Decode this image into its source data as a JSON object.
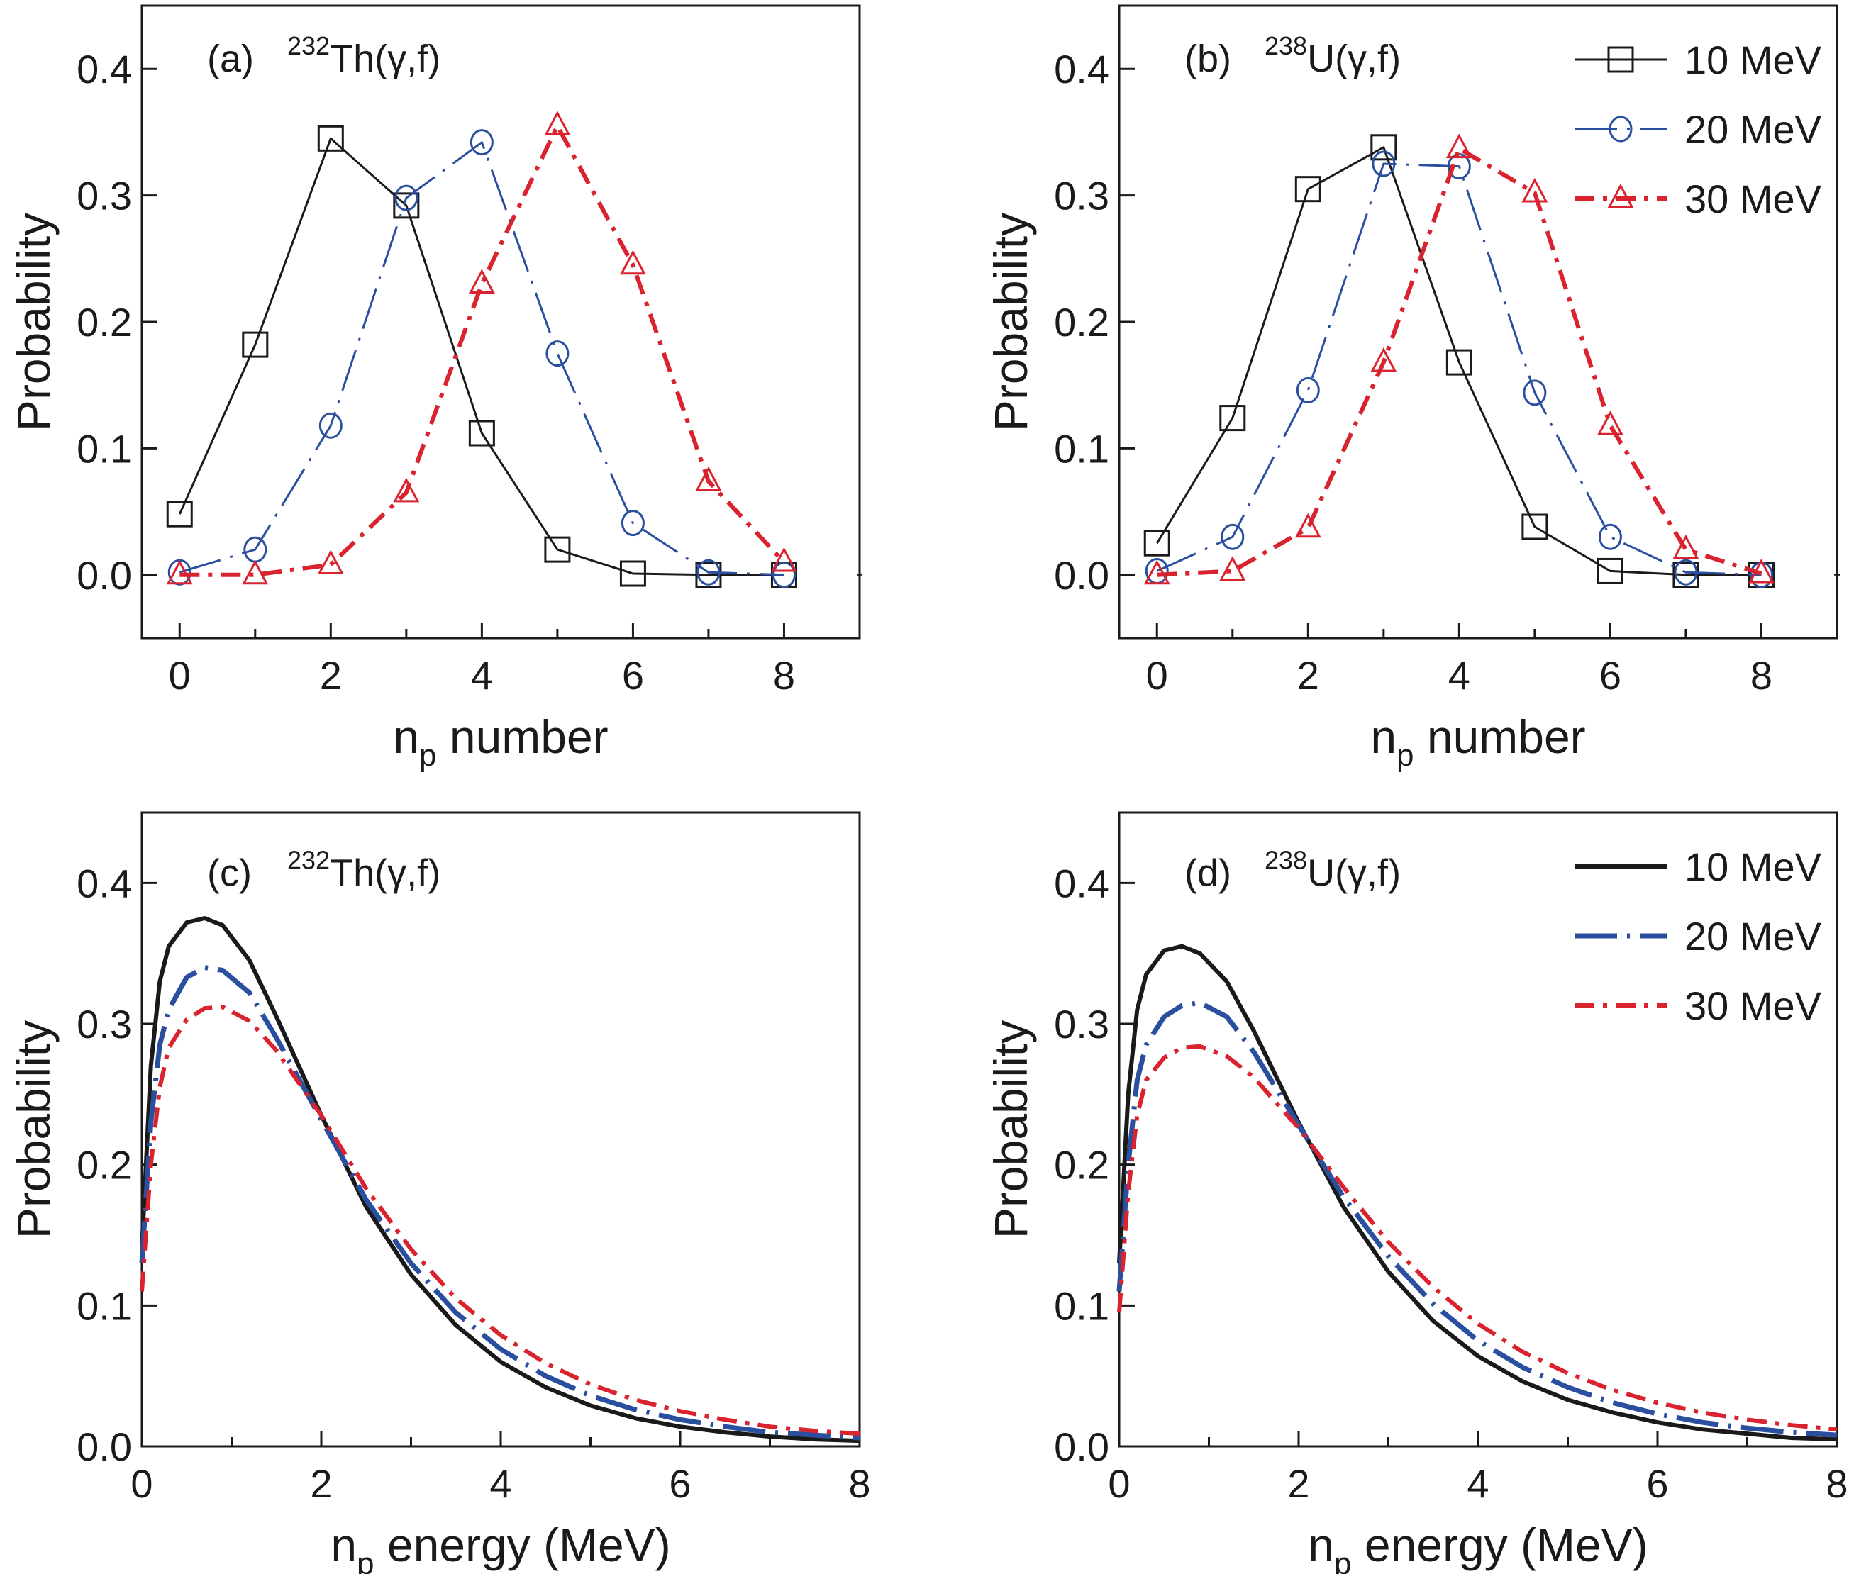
{
  "chart_data": [
    {
      "id": "a",
      "type": "line",
      "panel_label": "(a)",
      "reaction": {
        "mass_number": "232",
        "text": "Th(γ,f)"
      },
      "xlabel": {
        "main": "n",
        "sub": "p",
        "rest": " number"
      },
      "ylabel": "Probability",
      "xlim": [
        -0.5,
        9.0
      ],
      "ylim": [
        -0.05,
        0.45
      ],
      "xticks": [
        0,
        2,
        4,
        6,
        8
      ],
      "xminor": [
        1,
        3,
        5,
        7
      ],
      "yticks": [
        0.0,
        0.1,
        0.2,
        0.3,
        0.4
      ],
      "ytick_labels": [
        "0.0",
        "0.1",
        "0.2",
        "0.3",
        "0.4"
      ],
      "legend": null,
      "x": [
        0,
        1,
        2,
        3,
        4,
        5,
        6,
        7,
        8
      ],
      "series": [
        {
          "name": "10 MeV",
          "color": "#1a1a1a",
          "style": "solid",
          "marker": "square",
          "values": [
            0.048,
            0.182,
            0.345,
            0.292,
            0.112,
            0.02,
            0.001,
            0.0,
            0.0
          ]
        },
        {
          "name": "20 MeV",
          "color": "#2a4f9e",
          "style": "dashdot",
          "marker": "circle",
          "values": [
            0.002,
            0.02,
            0.118,
            0.298,
            0.342,
            0.175,
            0.041,
            0.002,
            0.0
          ]
        },
        {
          "name": "30 MeV",
          "color": "#d9232e",
          "style": "dashdotbold",
          "marker": "triangle",
          "values": [
            0.0,
            0.0,
            0.008,
            0.065,
            0.23,
            0.355,
            0.245,
            0.074,
            0.01
          ]
        }
      ]
    },
    {
      "id": "b",
      "type": "line",
      "panel_label": "(b)",
      "reaction": {
        "mass_number": "238",
        "text": "U(γ,f)"
      },
      "xlabel": {
        "main": "n",
        "sub": "p",
        "rest": " number"
      },
      "ylabel": "Probability",
      "xlim": [
        -0.5,
        9.0
      ],
      "ylim": [
        -0.05,
        0.45
      ],
      "xticks": [
        0,
        2,
        4,
        6,
        8
      ],
      "xminor": [
        1,
        3,
        5,
        7
      ],
      "yticks": [
        0.0,
        0.1,
        0.2,
        0.3,
        0.4
      ],
      "ytick_labels": [
        "0.0",
        "0.1",
        "0.2",
        "0.3",
        "0.4"
      ],
      "legend": "top-right",
      "x": [
        0,
        1,
        2,
        3,
        4,
        5,
        6,
        7,
        8
      ],
      "series": [
        {
          "name": "10 MeV",
          "color": "#1a1a1a",
          "style": "solid",
          "marker": "square",
          "values": [
            0.025,
            0.124,
            0.305,
            0.338,
            0.168,
            0.038,
            0.003,
            0.0,
            0.0
          ]
        },
        {
          "name": "20 MeV",
          "color": "#2a4f9e",
          "style": "dashdot",
          "marker": "circle",
          "values": [
            0.003,
            0.03,
            0.146,
            0.325,
            0.323,
            0.144,
            0.03,
            0.002,
            0.0
          ]
        },
        {
          "name": "30 MeV",
          "color": "#d9232e",
          "style": "dashdotbold",
          "marker": "triangle",
          "values": [
            0.0,
            0.003,
            0.037,
            0.168,
            0.337,
            0.302,
            0.118,
            0.02,
            0.001
          ]
        }
      ]
    },
    {
      "id": "c",
      "type": "line",
      "panel_label": "(c)",
      "reaction": {
        "mass_number": "232",
        "text": "Th(γ,f)"
      },
      "xlabel": {
        "main": "n",
        "sub": "p",
        "rest": " energy (MeV)"
      },
      "ylabel": "Probability",
      "xlim": [
        0,
        8
      ],
      "ylim": [
        0.0,
        0.45
      ],
      "xticks": [
        0,
        2,
        4,
        6,
        8
      ],
      "xminor": [
        1,
        3,
        5,
        7
      ],
      "yticks": [
        0.0,
        0.1,
        0.2,
        0.3,
        0.4
      ],
      "ytick_labels": [
        "0.0",
        "0.1",
        "0.2",
        "0.3",
        "0.4"
      ],
      "legend": null,
      "x": [
        0.0,
        0.1,
        0.2,
        0.3,
        0.5,
        0.7,
        0.9,
        1.2,
        1.5,
        2.0,
        2.5,
        3.0,
        3.5,
        4.0,
        4.5,
        5.0,
        5.5,
        6.0,
        6.5,
        7.0,
        7.5,
        8.0
      ],
      "series": [
        {
          "name": "10 MeV",
          "color": "#1a1a1a",
          "style": "solid",
          "values": [
            0.14,
            0.27,
            0.33,
            0.355,
            0.372,
            0.375,
            0.37,
            0.345,
            0.305,
            0.235,
            0.17,
            0.122,
            0.086,
            0.06,
            0.042,
            0.029,
            0.02,
            0.014,
            0.01,
            0.007,
            0.005,
            0.004
          ]
        },
        {
          "name": "20 MeV",
          "color": "#2a4f9e",
          "style": "dashdot",
          "values": [
            0.13,
            0.23,
            0.285,
            0.31,
            0.333,
            0.34,
            0.338,
            0.322,
            0.29,
            0.232,
            0.175,
            0.13,
            0.095,
            0.069,
            0.05,
            0.036,
            0.026,
            0.019,
            0.014,
            0.01,
            0.008,
            0.006
          ]
        },
        {
          "name": "30 MeV",
          "color": "#d9232e",
          "style": "dashdotbold",
          "values": [
            0.11,
            0.2,
            0.255,
            0.283,
            0.303,
            0.311,
            0.312,
            0.302,
            0.281,
            0.235,
            0.183,
            0.14,
            0.105,
            0.079,
            0.059,
            0.044,
            0.033,
            0.025,
            0.019,
            0.014,
            0.011,
            0.009
          ]
        }
      ]
    },
    {
      "id": "d",
      "type": "line",
      "panel_label": "(d)",
      "reaction": {
        "mass_number": "238",
        "text": "U(γ,f)"
      },
      "xlabel": {
        "main": "n",
        "sub": "p",
        "rest": " energy (MeV)"
      },
      "ylabel": "Probability",
      "xlim": [
        0,
        8
      ],
      "ylim": [
        0.0,
        0.45
      ],
      "xticks": [
        0,
        2,
        4,
        6,
        8
      ],
      "xminor": [
        1,
        3,
        5,
        7
      ],
      "yticks": [
        0.0,
        0.1,
        0.2,
        0.3,
        0.4
      ],
      "ytick_labels": [
        "0.0",
        "0.1",
        "0.2",
        "0.3",
        "0.4"
      ],
      "legend": "top-right",
      "x": [
        0.0,
        0.1,
        0.2,
        0.3,
        0.5,
        0.7,
        0.9,
        1.2,
        1.5,
        2.0,
        2.5,
        3.0,
        3.5,
        4.0,
        4.5,
        5.0,
        5.5,
        6.0,
        6.5,
        7.0,
        7.5,
        8.0
      ],
      "series": [
        {
          "name": "10 MeV",
          "color": "#1a1a1a",
          "style": "solid",
          "values": [
            0.13,
            0.25,
            0.31,
            0.335,
            0.352,
            0.355,
            0.35,
            0.33,
            0.295,
            0.23,
            0.17,
            0.124,
            0.089,
            0.064,
            0.046,
            0.033,
            0.024,
            0.017,
            0.012,
            0.009,
            0.006,
            0.005
          ]
        },
        {
          "name": "20 MeV",
          "color": "#2a4f9e",
          "style": "dashdot",
          "values": [
            0.11,
            0.2,
            0.26,
            0.285,
            0.305,
            0.313,
            0.315,
            0.305,
            0.28,
            0.228,
            0.177,
            0.135,
            0.101,
            0.075,
            0.056,
            0.042,
            0.031,
            0.023,
            0.017,
            0.013,
            0.01,
            0.008
          ]
        },
        {
          "name": "30 MeV",
          "color": "#d9232e",
          "style": "dashdotbold",
          "values": [
            0.095,
            0.18,
            0.235,
            0.26,
            0.276,
            0.283,
            0.284,
            0.277,
            0.262,
            0.226,
            0.184,
            0.145,
            0.113,
            0.087,
            0.067,
            0.052,
            0.04,
            0.031,
            0.024,
            0.019,
            0.015,
            0.012
          ]
        }
      ]
    }
  ]
}
